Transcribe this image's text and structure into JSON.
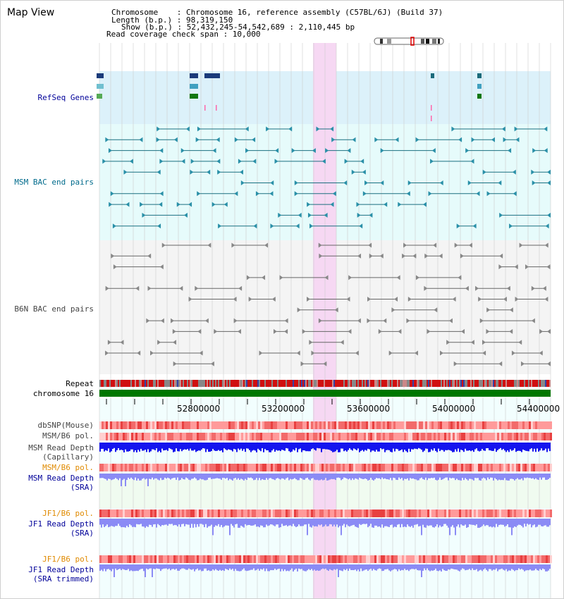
{
  "title": "Map View",
  "info": {
    "chromosome_line": "Chromosome    : Chromosome 16, reference assembly (C57BL/6J) (Build 37)",
    "length_line": "Length (b.p.) : 98,319,150",
    "show_line": "Show (b.p.) : 52,432,245-54,542,689 : 2,110,445 bp",
    "coverage_line": "Read coverage check span : 10,000"
  },
  "ideogram": {
    "name": "chromosome-16-ideogram",
    "highlight_color": "#e00000"
  },
  "tracks": {
    "refseq": "RefSeq Genes",
    "msm_bac": "MSM BAC end pairs",
    "b6n_bac": "B6N BAC end pairs",
    "repeat": "Repeat",
    "chromosome": "chromosome 16",
    "dbsnp": "dbSNP(Mouse)",
    "msm_b6_pol_1": "MSM/B6 pol.",
    "msm_read_depth_cap_1": "MSM Read Depth",
    "msm_read_depth_cap_2": "(Capillary)",
    "msm_b6_pol_2": "MSM/B6 pol.",
    "msm_read_depth_sra_1": "MSM Read Depth",
    "msm_read_depth_sra_2": "(SRA)",
    "jf1_b6_pol_1": "JF1/B6 pol.",
    "jf1_read_depth_sra_1": "JF1 Read Depth",
    "jf1_read_depth_sra_2": "(SRA)",
    "jf1_b6_pol_2": "JF1/B6 pol.",
    "jf1_read_depth_trim_1": "JF1 Read Depth",
    "jf1_read_depth_trim_2": "(SRA trimmed)"
  },
  "axis": {
    "ticks": [
      "52800000",
      "53200000",
      "53600000",
      "54000000",
      "54400000"
    ]
  },
  "colors": {
    "refseq_bg": "#dcf1fa",
    "msm_bg": "#e6fbfb",
    "b6n_bg": "#f4f4f4",
    "highlight": "#f6d8f3",
    "repeat_red": "#d01010",
    "chromosome_green": "#007700",
    "label_navy": "#000099",
    "label_teal": "#006b8c",
    "label_orange": "#e08a00",
    "depth_blue": "#1515ee",
    "depth_light": "#8b8bf5",
    "pol_red": "#f05050"
  }
}
